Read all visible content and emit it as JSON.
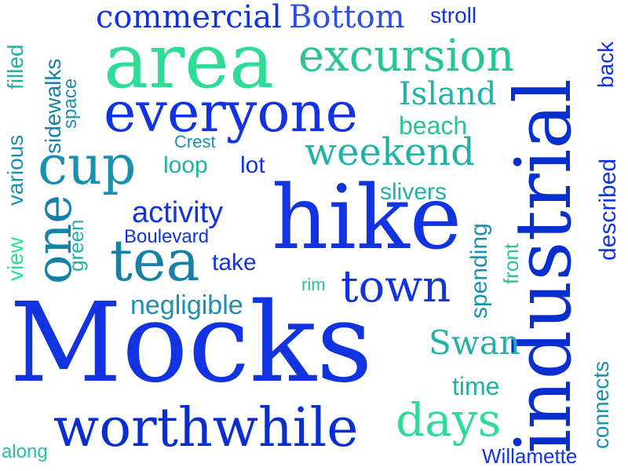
{
  "colors": {
    "royal_blue": "#1233e0",
    "deep_blue": "#0a2fd0",
    "blue": "#2e4ee8",
    "teal": "#1a8fb0",
    "teal_dark": "#1780a6",
    "aqua": "#23b0a6",
    "sea_green": "#27c39a",
    "mint": "#2fdc96"
  },
  "words": {
    "mocks": "Mocks",
    "hike": "hike",
    "industrial": "industrial",
    "area": "area",
    "everyone": "everyone",
    "worthwhile": "worthwhile",
    "excursion": "excursion",
    "cup": "cup",
    "tea": "tea",
    "town": "town",
    "days": "days",
    "weekend": "weekend",
    "commercial": "commercial",
    "bottom": "Bottom",
    "stroll": "stroll",
    "island": "Island",
    "beach": "beach",
    "swan": "Swan",
    "activity": "activity",
    "one": "one",
    "filled": "filled",
    "various": "various",
    "view": "view",
    "sidewalks": "sidewalks",
    "space": "space",
    "green": "green",
    "crest": "Crest",
    "loop": "loop",
    "lot": "lot",
    "slivers": "slivers",
    "boulevard": "Boulevard",
    "take": "take",
    "negligible": "negligible",
    "rim": "rim",
    "spending": "spending",
    "front": "front",
    "described": "described",
    "back": "back",
    "connects": "connects",
    "time": "time",
    "along": "along",
    "willamette": "Willamette"
  }
}
